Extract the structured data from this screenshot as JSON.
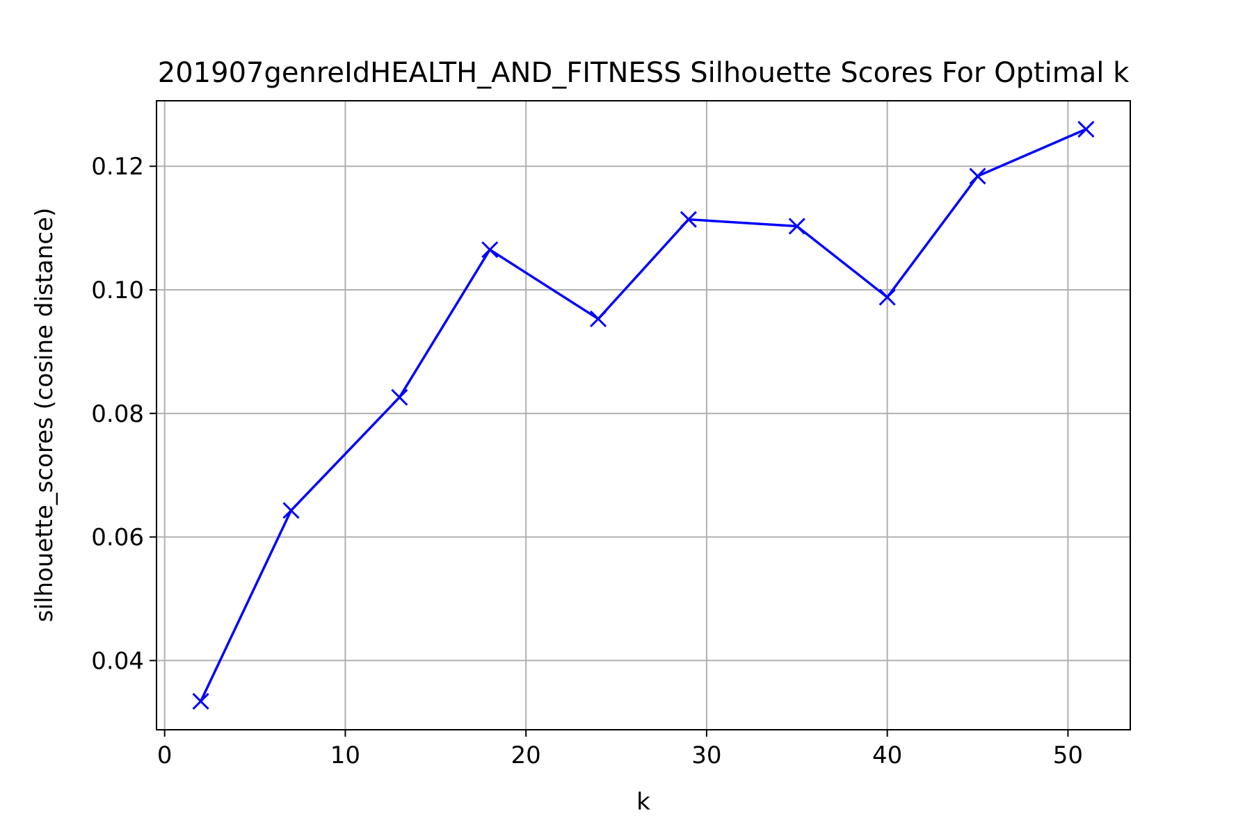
{
  "chart_data": {
    "type": "line",
    "title": "201907genreIdHEALTH_AND_FITNESS Silhouette Scores For Optimal k",
    "xlabel": "k",
    "ylabel": "silhouette_scores (cosine distance)",
    "x": [
      2,
      7,
      13,
      18,
      24,
      29,
      35,
      40,
      45,
      51
    ],
    "series": [
      {
        "values": [
          0.0334,
          0.0643,
          0.0826,
          0.1065,
          0.0953,
          0.1114,
          0.1103,
          0.0988,
          0.1184,
          0.126
        ]
      }
    ],
    "xlim": [
      -0.45,
      53.45
    ],
    "ylim": [
      0.0288,
      0.1306
    ],
    "xticks": [
      "0",
      "10",
      "20",
      "30",
      "40",
      "50"
    ],
    "xtick_values": [
      0,
      10,
      20,
      30,
      40,
      50
    ],
    "yticks": [
      "0.04",
      "0.06",
      "0.08",
      "0.10",
      "0.12"
    ],
    "ytick_values": [
      0.04,
      0.06,
      0.08,
      0.1,
      0.12
    ],
    "grid": true,
    "marker": "x",
    "line_color": "#0000ff",
    "grid_color": "#b0b0b0",
    "axis_color": "#000000"
  }
}
